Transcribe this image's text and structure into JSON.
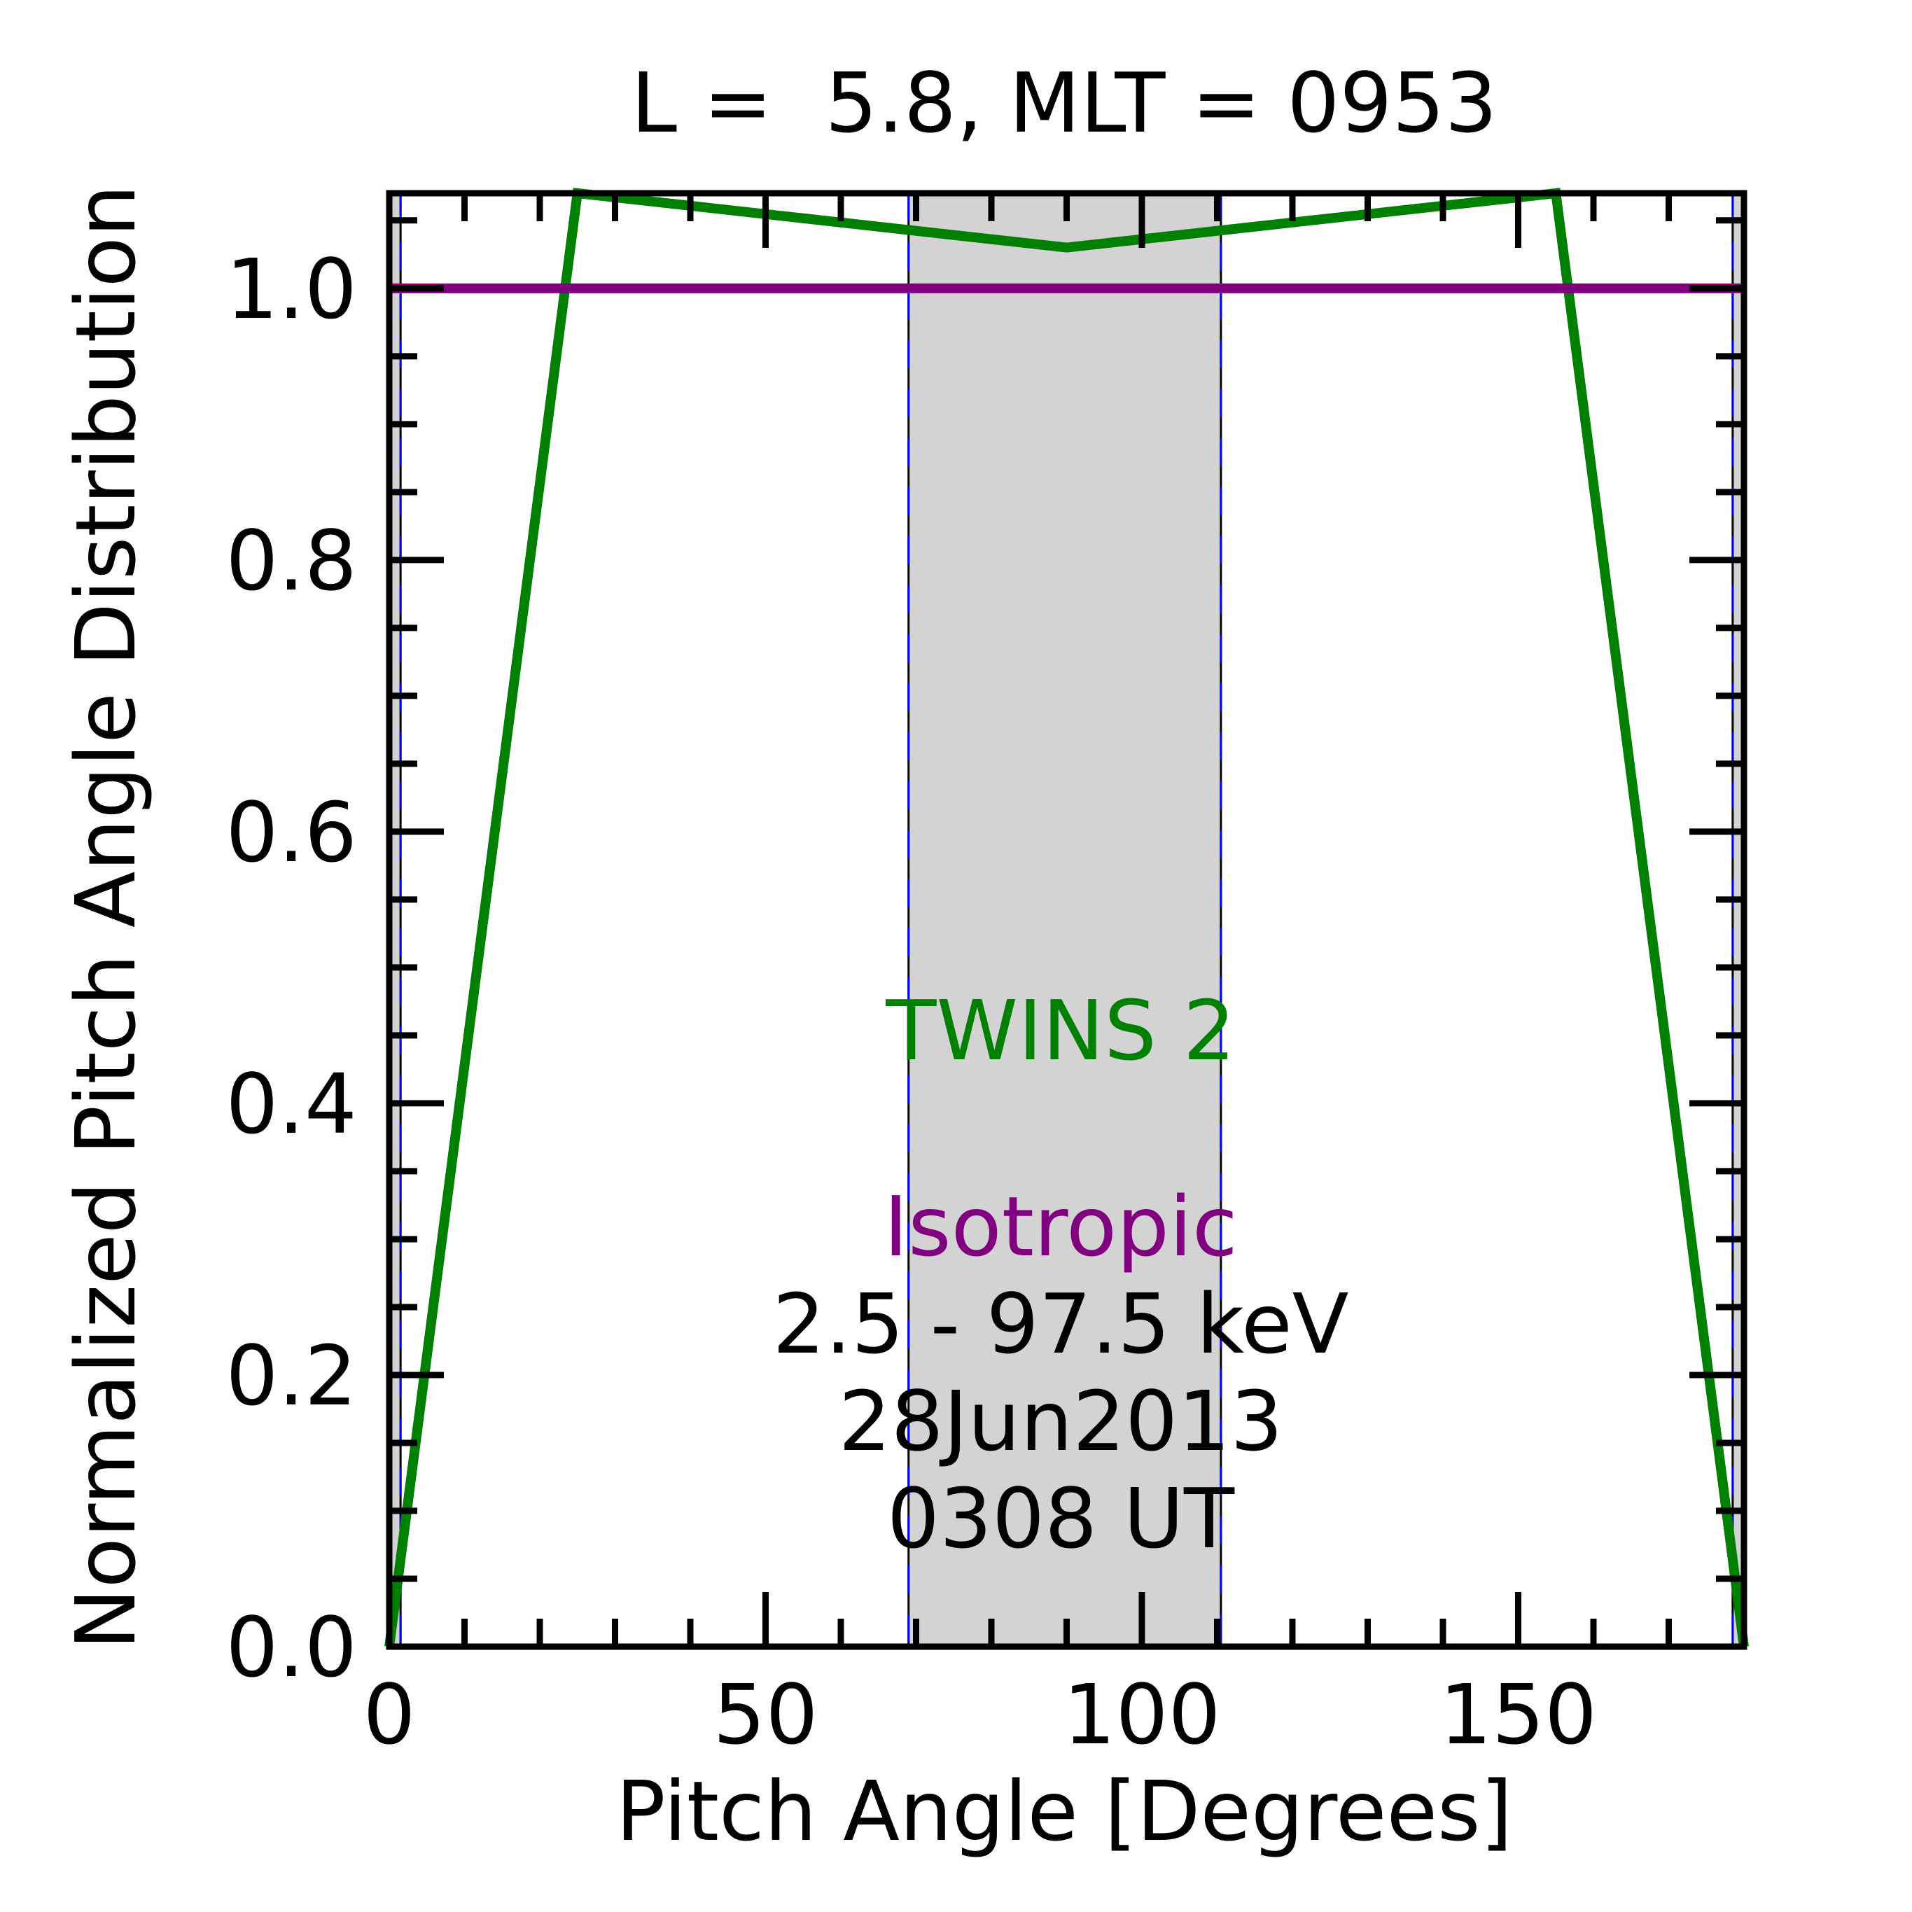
{
  "chart_data": {
    "type": "line",
    "title": "L =  5.8, MLT = 0953",
    "xlabel": "Pitch Angle [Degrees]",
    "ylabel": "Normalized Pitch Angle Distribution",
    "xlim": [
      0,
      180
    ],
    "ylim": [
      0,
      1.07
    ],
    "x_ticks": [
      0,
      50,
      100,
      150
    ],
    "x_tick_labels": [
      "0",
      "50",
      "100",
      "150"
    ],
    "y_ticks": [
      0.0,
      0.2,
      0.4,
      0.6,
      0.8,
      1.0
    ],
    "y_tick_labels": [
      "0.0",
      "0.2",
      "0.4",
      "0.6",
      "0.8",
      "1.0"
    ],
    "grid": false,
    "shaded_regions": [
      {
        "from": 0,
        "to": 1.5,
        "color": "#d3d3d3"
      },
      {
        "from": 69,
        "to": 110.5,
        "color": "#d3d3d3"
      },
      {
        "from": 178.5,
        "to": 180,
        "color": "#d3d3d3"
      }
    ],
    "vertical_lines": [
      1.5,
      69,
      110.5,
      178.5
    ],
    "series": [
      {
        "name": "TWINS 2",
        "color": "#008000",
        "x": [
          0,
          25,
          90,
          155,
          180
        ],
        "y": [
          0.0,
          1.07,
          1.03,
          1.07,
          0.0
        ]
      },
      {
        "name": "Isotropic",
        "color": "#800080",
        "x": [
          0,
          180
        ],
        "y": [
          1.0,
          1.0
        ]
      }
    ],
    "annotations": [
      {
        "text": "TWINS 2",
        "color": "#008000"
      },
      {
        "text": "Isotropic",
        "color": "#800080"
      },
      {
        "text": "2.5 - 97.5 keV",
        "color": "#000000"
      },
      {
        "text": "28Jun2013",
        "color": "#000000"
      },
      {
        "text": "0308 UT",
        "color": "#000000"
      }
    ]
  }
}
